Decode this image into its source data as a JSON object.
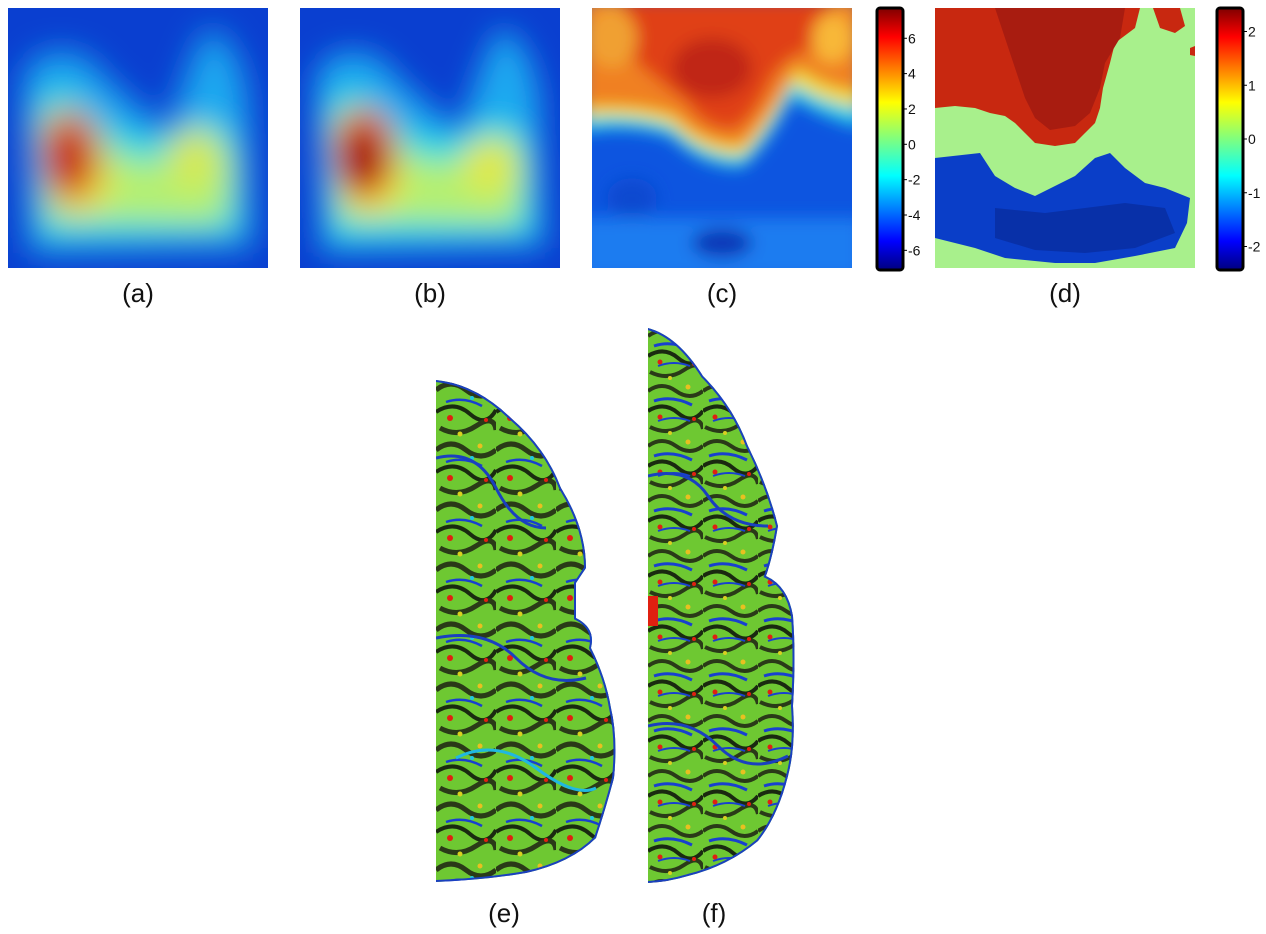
{
  "panels": {
    "a": {
      "label": "(a)"
    },
    "b": {
      "label": "(b)"
    },
    "c": {
      "label": "(c)"
    },
    "d": {
      "label": "(d)"
    },
    "e": {
      "label": "(e)"
    },
    "f": {
      "label": "(f)"
    }
  },
  "colorbar_c": {
    "ticks": [
      "6",
      "4",
      "2",
      "0",
      "-2",
      "-4",
      "-6"
    ],
    "tick_values": [
      6,
      4,
      2,
      0,
      -2,
      -4,
      -6
    ],
    "range": [
      -7,
      7.6
    ]
  },
  "colorbar_d": {
    "ticks": [
      "2",
      "1",
      "0",
      "-1",
      "-2"
    ],
    "tick_values": [
      2,
      1,
      0,
      -1,
      -2
    ],
    "range": [
      -2.4,
      2.4
    ]
  },
  "colormap": "jet"
}
